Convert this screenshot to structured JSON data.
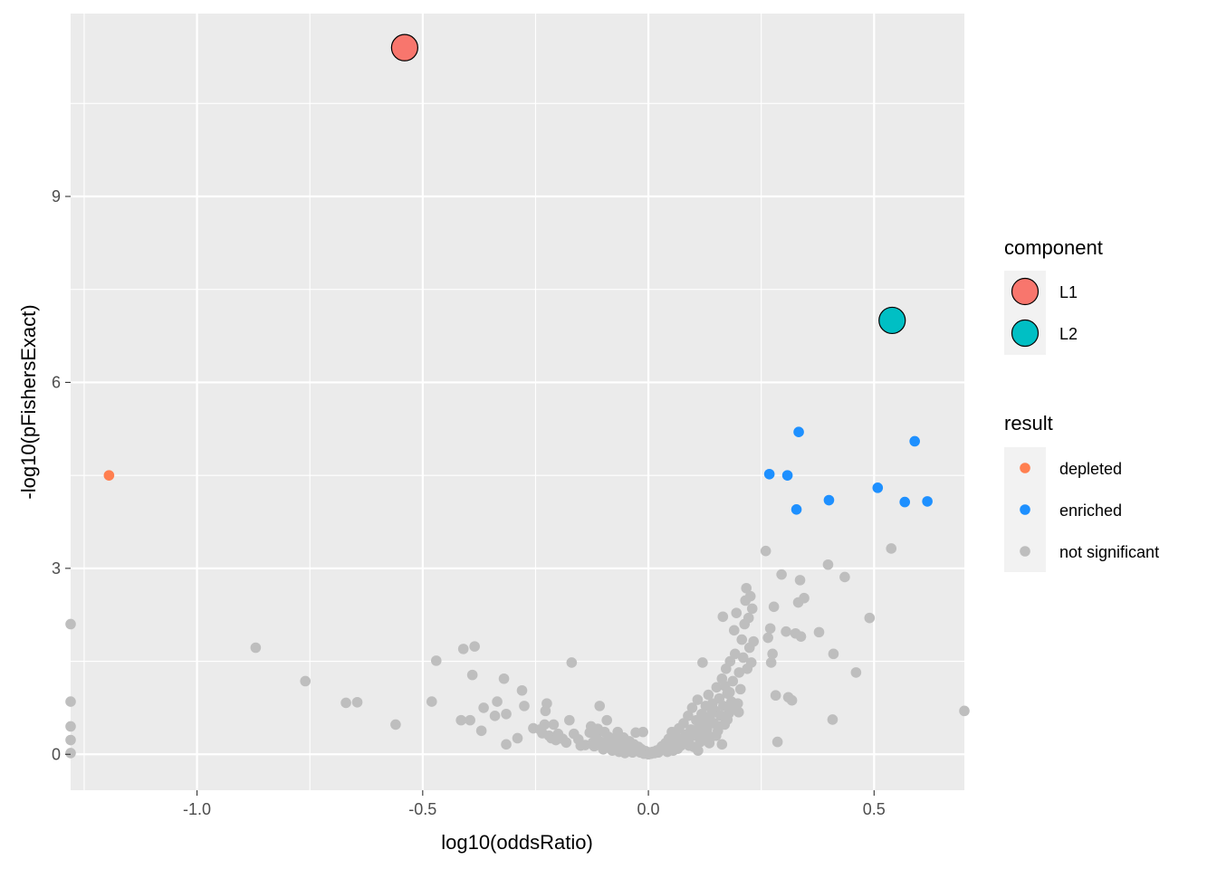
{
  "chart_data": {
    "type": "scatter",
    "xlabel": "log10(oddsRatio)",
    "ylabel": "-log10(pFishersExact)",
    "xlim": [
      -1.28,
      0.7
    ],
    "ylim": [
      -0.58,
      11.95
    ],
    "xticks": [
      -1.0,
      -0.5,
      0.0,
      0.5
    ],
    "xtick_labels": [
      "-1.0",
      "-0.5",
      "0.0",
      "0.5"
    ],
    "yticks": [
      0,
      3,
      6,
      9
    ],
    "ytick_labels": [
      "0",
      "3",
      "6",
      "9"
    ],
    "grid": true,
    "panel_background": "#ebebeb",
    "legend_position": "right",
    "legends": [
      {
        "title": "component",
        "entries": [
          {
            "label": "L1",
            "color": "#f8766d",
            "shape": "circle-outlined"
          },
          {
            "label": "L2",
            "color": "#00bfc4",
            "shape": "circle-outlined"
          }
        ]
      },
      {
        "title": "result",
        "entries": [
          {
            "label": "depleted",
            "color": "#ff7f50",
            "shape": "dot"
          },
          {
            "label": "enriched",
            "color": "#1e90ff",
            "shape": "dot"
          },
          {
            "label": "not significant",
            "color": "#bebebe",
            "shape": "dot"
          }
        ]
      }
    ],
    "component_points": [
      {
        "name": "L1",
        "x": -0.54,
        "y": 11.4,
        "color": "#f8766d"
      },
      {
        "name": "L2",
        "x": 0.54,
        "y": 7.0,
        "color": "#00bfc4"
      }
    ],
    "series": [
      {
        "name": "not significant",
        "color": "#bebebe",
        "points": [
          [
            -1.28,
            2.1
          ],
          [
            -1.28,
            0.85
          ],
          [
            -1.28,
            0.45
          ],
          [
            -1.28,
            0.23
          ],
          [
            -1.28,
            0.02
          ],
          [
            -0.87,
            1.72
          ],
          [
            -0.76,
            1.18
          ],
          [
            -0.67,
            0.83
          ],
          [
            -0.645,
            0.84
          ],
          [
            -0.56,
            0.48
          ],
          [
            -0.48,
            0.85
          ],
          [
            -0.47,
            1.51
          ],
          [
            -0.415,
            0.55
          ],
          [
            -0.41,
            1.7
          ],
          [
            -0.395,
            0.55
          ],
          [
            -0.39,
            1.28
          ],
          [
            -0.385,
            1.74
          ],
          [
            -0.37,
            0.38
          ],
          [
            -0.365,
            0.75
          ],
          [
            -0.34,
            0.62
          ],
          [
            -0.335,
            0.85
          ],
          [
            -0.32,
            1.22
          ],
          [
            -0.315,
            0.65
          ],
          [
            -0.315,
            0.16
          ],
          [
            -0.29,
            0.26
          ],
          [
            -0.28,
            1.03
          ],
          [
            -0.275,
            0.78
          ],
          [
            -0.255,
            0.42
          ],
          [
            -0.24,
            0.4
          ],
          [
            -0.235,
            0.34
          ],
          [
            -0.23,
            0.48
          ],
          [
            -0.228,
            0.7
          ],
          [
            -0.225,
            0.82
          ],
          [
            -0.22,
            0.3
          ],
          [
            -0.215,
            0.26
          ],
          [
            -0.21,
            0.48
          ],
          [
            -0.205,
            0.23
          ],
          [
            -0.2,
            0.33
          ],
          [
            -0.19,
            0.25
          ],
          [
            -0.182,
            0.19
          ],
          [
            -0.175,
            0.55
          ],
          [
            -0.17,
            1.48
          ],
          [
            -0.165,
            0.33
          ],
          [
            -0.155,
            0.24
          ],
          [
            -0.15,
            0.14
          ],
          [
            -0.14,
            0.15
          ],
          [
            -0.13,
            0.35
          ],
          [
            -0.127,
            0.45
          ],
          [
            -0.123,
            0.19
          ],
          [
            -0.12,
            0.13
          ],
          [
            -0.115,
            0.27
          ],
          [
            -0.112,
            0.41
          ],
          [
            -0.108,
            0.78
          ],
          [
            -0.105,
            0.2
          ],
          [
            -0.1,
            0.08
          ],
          [
            -0.097,
            0.36
          ],
          [
            -0.094,
            0.13
          ],
          [
            -0.092,
            0.55
          ],
          [
            -0.088,
            0.28
          ],
          [
            -0.084,
            0.18
          ],
          [
            -0.08,
            0.06
          ],
          [
            -0.076,
            0.25
          ],
          [
            -0.072,
            0.12
          ],
          [
            -0.068,
            0.36
          ],
          [
            -0.065,
            0.04
          ],
          [
            -0.062,
            0.19
          ],
          [
            -0.058,
            0.08
          ],
          [
            -0.055,
            0.27
          ],
          [
            -0.052,
            0.02
          ],
          [
            -0.048,
            0.13
          ],
          [
            -0.045,
            0.05
          ],
          [
            -0.042,
            0.21
          ],
          [
            -0.038,
            0.1
          ],
          [
            -0.035,
            0.03
          ],
          [
            -0.032,
            0.16
          ],
          [
            -0.028,
            0.35
          ],
          [
            -0.025,
            0.06
          ],
          [
            -0.022,
            0.12
          ],
          [
            -0.018,
            0.03
          ],
          [
            -0.015,
            0.08
          ],
          [
            -0.012,
            0.36
          ],
          [
            -0.01,
            0.01
          ],
          [
            -0.006,
            0.05
          ],
          [
            -0.003,
            0.02
          ],
          [
            0.0,
            0.0
          ],
          [
            0.003,
            0.03
          ],
          [
            0.006,
            0.01
          ],
          [
            0.01,
            0.04
          ],
          [
            0.014,
            0.02
          ],
          [
            0.018,
            0.06
          ],
          [
            0.022,
            0.03
          ],
          [
            0.026,
            0.09
          ],
          [
            0.03,
            0.13
          ],
          [
            0.034,
            0.07
          ],
          [
            0.038,
            0.18
          ],
          [
            0.042,
            0.04
          ],
          [
            0.045,
            0.25
          ],
          [
            0.048,
            0.11
          ],
          [
            0.052,
            0.36
          ],
          [
            0.055,
            0.06
          ],
          [
            0.058,
            0.17
          ],
          [
            0.062,
            0.28
          ],
          [
            0.065,
            0.09
          ],
          [
            0.068,
            0.42
          ],
          [
            0.072,
            0.14
          ],
          [
            0.075,
            0.22
          ],
          [
            0.078,
            0.5
          ],
          [
            0.082,
            0.32
          ],
          [
            0.085,
            0.18
          ],
          [
            0.088,
            0.62
          ],
          [
            0.091,
            0.26
          ],
          [
            0.094,
            0.4
          ],
          [
            0.097,
            0.75
          ],
          [
            0.1,
            0.12
          ],
          [
            0.103,
            0.35
          ],
          [
            0.106,
            0.55
          ],
          [
            0.109,
            0.88
          ],
          [
            0.112,
            0.44
          ],
          [
            0.115,
            0.2
          ],
          [
            0.118,
            0.65
          ],
          [
            0.12,
            1.48
          ],
          [
            0.121,
            0.32
          ],
          [
            0.124,
            0.52
          ],
          [
            0.127,
            0.78
          ],
          [
            0.13,
            0.4
          ],
          [
            0.133,
            0.96
          ],
          [
            0.136,
            0.6
          ],
          [
            0.139,
            0.28
          ],
          [
            0.142,
            0.82
          ],
          [
            0.145,
            0.5
          ],
          [
            0.148,
            0.7
          ],
          [
            0.151,
            1.08
          ],
          [
            0.154,
            0.38
          ],
          [
            0.157,
            0.9
          ],
          [
            0.16,
            0.62
          ],
          [
            0.163,
            1.22
          ],
          [
            0.165,
            2.22
          ],
          [
            0.166,
            0.78
          ],
          [
            0.169,
            0.48
          ],
          [
            0.172,
            1.38
          ],
          [
            0.175,
            0.98
          ],
          [
            0.178,
            0.66
          ],
          [
            0.181,
            1.5
          ],
          [
            0.184,
            0.85
          ],
          [
            0.187,
            1.18
          ],
          [
            0.19,
            2.0
          ],
          [
            0.192,
            1.62
          ],
          [
            0.195,
            2.28
          ],
          [
            0.198,
            0.82
          ],
          [
            0.201,
            1.32
          ],
          [
            0.204,
            1.05
          ],
          [
            0.207,
            1.85
          ],
          [
            0.21,
            1.56
          ],
          [
            0.213,
            2.1
          ],
          [
            0.215,
            2.48
          ],
          [
            0.217,
            2.68
          ],
          [
            0.219,
            1.38
          ],
          [
            0.222,
            2.2
          ],
          [
            0.224,
            1.72
          ],
          [
            0.226,
            2.55
          ],
          [
            0.228,
            1.48
          ],
          [
            0.23,
            2.35
          ],
          [
            0.233,
            1.82
          ],
          [
            0.163,
            0.16
          ],
          [
            0.12,
            0.28
          ],
          [
            0.09,
            0.14
          ],
          [
            0.07,
            0.24
          ],
          [
            0.11,
            0.06
          ],
          [
            0.15,
            0.3
          ],
          [
            0.135,
            0.18
          ],
          [
            0.26,
            3.28
          ],
          [
            0.265,
            1.88
          ],
          [
            0.27,
            2.03
          ],
          [
            0.272,
            1.48
          ],
          [
            0.275,
            1.62
          ],
          [
            0.278,
            2.38
          ],
          [
            0.282,
            0.95
          ],
          [
            0.286,
            0.2
          ],
          [
            0.295,
            2.9
          ],
          [
            0.305,
            1.98
          ],
          [
            0.31,
            0.92
          ],
          [
            0.318,
            0.87
          ],
          [
            0.326,
            1.95
          ],
          [
            0.332,
            2.45
          ],
          [
            0.336,
            2.81
          ],
          [
            0.338,
            1.9
          ],
          [
            0.345,
            2.52
          ],
          [
            0.378,
            1.97
          ],
          [
            0.398,
            3.06
          ],
          [
            0.408,
            0.56
          ],
          [
            0.41,
            1.62
          ],
          [
            0.435,
            2.86
          ],
          [
            0.46,
            1.32
          ],
          [
            0.49,
            2.2
          ],
          [
            0.538,
            3.32
          ],
          [
            0.7,
            0.7
          ],
          [
            0.17,
            1.1
          ],
          [
            0.18,
            1.0
          ],
          [
            0.2,
            0.68
          ],
          [
            0.185,
            0.72
          ],
          [
            0.14,
            0.66
          ],
          [
            0.125,
            0.42
          ],
          [
            0.105,
            0.3
          ],
          [
            0.155,
            0.45
          ],
          [
            0.175,
            0.56
          ]
        ]
      },
      {
        "name": "enriched",
        "color": "#1e90ff",
        "points": [
          [
            0.268,
            4.52
          ],
          [
            0.308,
            4.5
          ],
          [
            0.328,
            3.95
          ],
          [
            0.333,
            5.2
          ],
          [
            0.4,
            4.1
          ],
          [
            0.508,
            4.3
          ],
          [
            0.568,
            4.07
          ],
          [
            0.59,
            5.05
          ],
          [
            0.618,
            4.08
          ]
        ]
      },
      {
        "name": "depleted",
        "color": "#ff7f50",
        "points": [
          [
            -1.195,
            4.5
          ]
        ]
      }
    ]
  }
}
